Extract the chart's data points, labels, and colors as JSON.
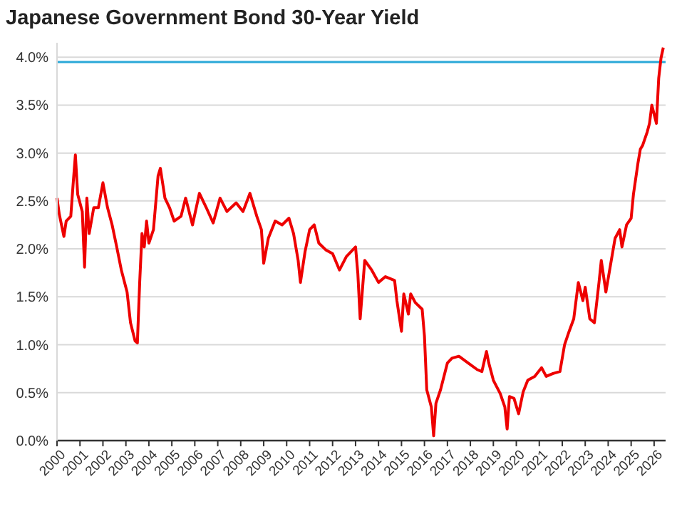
{
  "chart_data": {
    "type": "line",
    "title": "Japanese Government Bond 30-Year Yield",
    "x": [
      2000.0,
      2000.1,
      2000.3,
      2000.4,
      2000.6,
      2000.7,
      2000.8,
      2000.9,
      2001.1,
      2001.2,
      2001.3,
      2001.4,
      2001.6,
      2001.8,
      2002.0,
      2002.2,
      2002.4,
      2002.6,
      2002.8,
      2003.05,
      2003.2,
      2003.4,
      2003.5,
      2003.6,
      2003.7,
      2003.8,
      2003.9,
      2004.0,
      2004.2,
      2004.4,
      2004.5,
      2004.7,
      2004.9,
      2005.1,
      2005.4,
      2005.6,
      2005.9,
      2006.2,
      2006.5,
      2006.8,
      2007.1,
      2007.4,
      2007.8,
      2008.1,
      2008.4,
      2008.7,
      2008.9,
      2009.0,
      2009.2,
      2009.5,
      2009.8,
      2010.1,
      2010.3,
      2010.5,
      2010.6,
      2010.8,
      2011.0,
      2011.2,
      2011.4,
      2011.7,
      2012.0,
      2012.3,
      2012.6,
      2013.0,
      2013.1,
      2013.2,
      2013.4,
      2013.7,
      2014.0,
      2014.3,
      2014.7,
      2014.8,
      2015.0,
      2015.1,
      2015.3,
      2015.4,
      2015.6,
      2015.9,
      2016.0,
      2016.1,
      2016.3,
      2016.4,
      2016.5,
      2016.7,
      2017.0,
      2017.2,
      2017.5,
      2017.9,
      2018.3,
      2018.5,
      2018.7,
      2018.8,
      2019.0,
      2019.3,
      2019.5,
      2019.6,
      2019.7,
      2019.9,
      2020.1,
      2020.3,
      2020.5,
      2020.8,
      2021.1,
      2021.3,
      2021.6,
      2021.9,
      2022.1,
      2022.3,
      2022.5,
      2022.7,
      2022.9,
      2023.0,
      2023.2,
      2023.4,
      2023.6,
      2023.7,
      2023.9,
      2024.1,
      2024.3,
      2024.5,
      2024.6,
      2024.8,
      2025.0,
      2025.1,
      2025.3,
      2025.4,
      2025.5,
      2025.7,
      2025.8,
      2025.9,
      2026.1,
      2026.2,
      2026.3,
      2026.4
    ],
    "series": [
      {
        "color": "#ee0000",
        "values": [
          2.53,
          2.36,
          2.13,
          2.29,
          2.34,
          2.67,
          2.98,
          2.57,
          2.39,
          1.81,
          2.53,
          2.16,
          2.43,
          2.43,
          2.69,
          2.43,
          2.25,
          2.02,
          1.78,
          1.55,
          1.23,
          1.04,
          1.02,
          1.65,
          2.16,
          2.02,
          2.29,
          2.06,
          2.2,
          2.76,
          2.84,
          2.53,
          2.43,
          2.29,
          2.34,
          2.53,
          2.25,
          2.58,
          2.43,
          2.27,
          2.53,
          2.39,
          2.48,
          2.39,
          2.58,
          2.34,
          2.2,
          1.85,
          2.11,
          2.29,
          2.25,
          2.32,
          2.16,
          1.88,
          1.65,
          1.97,
          2.2,
          2.25,
          2.06,
          1.99,
          1.95,
          1.78,
          1.92,
          2.02,
          1.74,
          1.27,
          1.88,
          1.78,
          1.65,
          1.71,
          1.67,
          1.46,
          1.14,
          1.53,
          1.32,
          1.53,
          1.44,
          1.37,
          1.09,
          0.53,
          0.35,
          0.05,
          0.39,
          0.53,
          0.81,
          0.86,
          0.88,
          0.81,
          0.74,
          0.72,
          0.93,
          0.81,
          0.63,
          0.49,
          0.35,
          0.12,
          0.46,
          0.44,
          0.28,
          0.51,
          0.63,
          0.67,
          0.76,
          0.67,
          0.7,
          0.72,
          1.0,
          1.14,
          1.27,
          1.65,
          1.46,
          1.6,
          1.27,
          1.23,
          1.65,
          1.88,
          1.55,
          1.83,
          2.11,
          2.2,
          2.02,
          2.25,
          2.32,
          2.57,
          2.9,
          3.04,
          3.08,
          3.22,
          3.31,
          3.5,
          3.31,
          3.78,
          3.99,
          4.1
        ]
      }
    ],
    "xlim": [
      2000,
      2026.5
    ],
    "xticks": [
      2000,
      2001,
      2002,
      2003,
      2004,
      2005,
      2006,
      2007,
      2008,
      2009,
      2010,
      2011,
      2012,
      2013,
      2014,
      2015,
      2016,
      2017,
      2018,
      2019,
      2020,
      2021,
      2022,
      2023,
      2024,
      2025,
      2026
    ],
    "ylim": [
      0,
      4.15
    ],
    "yticks": [
      {
        "value": 0,
        "label": "0.0%"
      },
      {
        "value": 0.5,
        "label": "0.5%"
      },
      {
        "value": 1,
        "label": "1.0%"
      },
      {
        "value": 1.5,
        "label": "1.5%"
      },
      {
        "value": 2,
        "label": "2.0%"
      },
      {
        "value": 2.5,
        "label": "2.5%"
      },
      {
        "value": 3,
        "label": "3.0%"
      },
      {
        "value": 3.5,
        "label": "3.5%"
      },
      {
        "value": 4,
        "label": "4.0%"
      }
    ],
    "grid": "y",
    "marker": "none",
    "line_style": "solid",
    "ref_lines": [
      {
        "axis": "y",
        "value": 3.95,
        "color": "#2aa8d8"
      }
    ]
  }
}
